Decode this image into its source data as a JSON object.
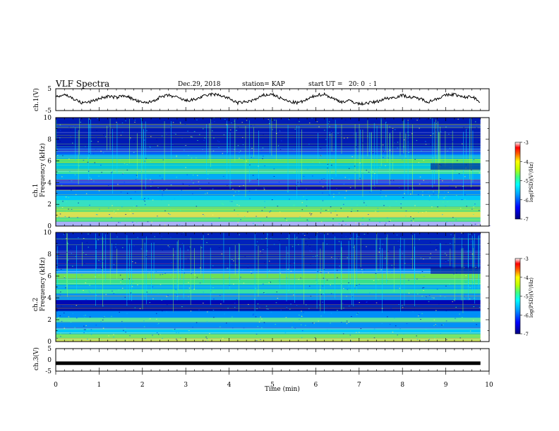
{
  "header": {
    "title": "VLF Spectra",
    "date": "Dec.29, 2018",
    "station": "station= KAP",
    "start": "start UT =   20: 0  : 1"
  },
  "chart_data": [
    {
      "type": "line",
      "name": "ch1_voltage",
      "ylabel": "ch.1(V)",
      "ylim": [
        -5,
        5
      ],
      "yticks": [
        "5",
        "-5"
      ],
      "x": [
        0,
        0.2,
        0.4,
        0.6,
        0.8,
        1.0,
        1.2,
        1.4,
        1.6,
        1.8,
        2.0,
        2.2,
        2.4,
        2.6,
        2.8,
        3.0,
        3.2,
        3.4,
        3.6,
        3.8,
        4.0,
        4.2,
        4.4,
        4.6,
        4.8,
        5.0,
        5.2,
        5.4,
        5.6,
        5.8,
        6.0,
        6.2,
        6.4,
        6.6,
        6.8,
        7.0,
        7.2,
        7.4,
        7.6,
        7.8,
        8.0,
        8.2,
        8.4,
        8.6,
        8.8,
        9.0,
        9.2,
        9.4,
        9.6,
        9.8
      ],
      "values": [
        1,
        2.5,
        0.5,
        -1.5,
        -1,
        0.5,
        1.5,
        1,
        2,
        0,
        -1.5,
        -1,
        1,
        2,
        1,
        -0.5,
        0,
        1.5,
        2.5,
        2,
        0.5,
        -1.5,
        -1,
        0,
        2,
        2.5,
        0.5,
        -1,
        -1.5,
        0,
        2,
        2.5,
        0.5,
        -1,
        -0.5,
        -2,
        -1.5,
        -1,
        0.5,
        1,
        2,
        1,
        0.5,
        -1,
        0.5,
        2,
        2.5,
        1,
        1.5,
        -1
      ]
    },
    {
      "type": "heatmap",
      "name": "ch1_spectrogram",
      "ylabel": "ch.1\nFrequency (kHz)",
      "ylim": [
        0,
        10
      ],
      "yticks": [
        "0",
        "2",
        "4",
        "6",
        "8",
        "10"
      ],
      "colorbar_label": "log(PSD)(V²/Hz)",
      "colorbar_ticks": [
        "-3",
        "-4",
        "-5",
        "-6",
        "-7"
      ]
    },
    {
      "type": "heatmap",
      "name": "ch2_spectrogram",
      "ylabel": "ch.2\nFrequency (kHz)",
      "ylim": [
        0,
        10
      ],
      "yticks": [
        "0",
        "2",
        "4",
        "6",
        "8",
        "10"
      ],
      "colorbar_label": "log(PSD)(V²/Hz)",
      "colorbar_ticks": [
        "-3",
        "-4",
        "-5",
        "-6",
        "-7"
      ]
    },
    {
      "type": "line",
      "name": "ch3_voltage",
      "ylabel": "ch.3(V)",
      "ylim": [
        -5,
        5
      ],
      "yticks": [
        "5",
        "0",
        "-5"
      ],
      "x": [
        0,
        9.8
      ],
      "values": [
        -1.5,
        -1.5
      ]
    }
  ],
  "xaxis": {
    "label": "Time (min)",
    "ticks": [
      "0",
      "1",
      "2",
      "3",
      "4",
      "5",
      "6",
      "7",
      "8",
      "9",
      "10"
    ]
  },
  "colors": {
    "colormap": [
      "#000080",
      "#0000ff",
      "#0080ff",
      "#00ffff",
      "#00ff80",
      "#80ff00",
      "#ffff00",
      "#ff8000",
      "#ff0000",
      "#ffffff"
    ]
  }
}
